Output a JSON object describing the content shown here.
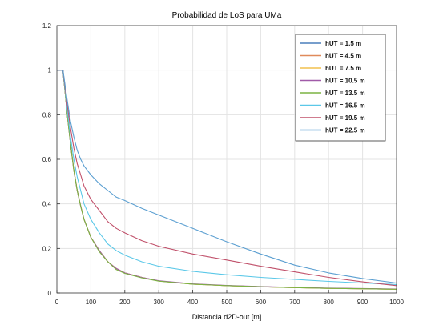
{
  "chart_data": {
    "type": "line",
    "title": "Probabilidad de LoS para UMa",
    "xlabel": "Distancia d2D-out [m]",
    "ylabel": "",
    "xlim": [
      0,
      1000
    ],
    "ylim": [
      0,
      1.2
    ],
    "xticks": [
      "0",
      "100",
      "200",
      "300",
      "400",
      "500",
      "600",
      "700",
      "800",
      "900",
      "1000"
    ],
    "yticks": [
      "0",
      "0.2",
      "0.4",
      "0.6",
      "0.8",
      "1",
      "1.2"
    ],
    "grid": true,
    "legend_position": "top-right",
    "x": [
      0,
      10,
      18,
      30,
      40,
      50,
      60,
      70,
      80,
      100,
      125,
      150,
      175,
      200,
      250,
      300,
      400,
      500,
      600,
      700,
      800,
      900,
      1000
    ],
    "series": [
      {
        "name": "hUT = 1.5 m",
        "color": "#4a7ebb",
        "values": [
          1,
          1,
          1,
          0.81,
          0.67,
          0.55,
          0.46,
          0.39,
          0.33,
          0.25,
          0.19,
          0.14,
          0.11,
          0.09,
          0.07,
          0.054,
          0.04,
          0.033,
          0.028,
          0.024,
          0.021,
          0.019,
          0.017
        ]
      },
      {
        "name": "hUT = 4.5 m",
        "color": "#e08a5a",
        "values": [
          1,
          1,
          1,
          0.81,
          0.67,
          0.55,
          0.46,
          0.39,
          0.33,
          0.25,
          0.19,
          0.14,
          0.11,
          0.09,
          0.07,
          0.054,
          0.04,
          0.033,
          0.028,
          0.024,
          0.021,
          0.019,
          0.017
        ]
      },
      {
        "name": "hUT = 7.5 m",
        "color": "#f2c14e",
        "values": [
          1,
          1,
          1,
          0.81,
          0.67,
          0.55,
          0.46,
          0.39,
          0.33,
          0.25,
          0.19,
          0.14,
          0.11,
          0.09,
          0.07,
          0.054,
          0.04,
          0.033,
          0.028,
          0.024,
          0.021,
          0.019,
          0.017
        ]
      },
      {
        "name": "hUT = 10.5 m",
        "color": "#a05aa8",
        "values": [
          1,
          1,
          1,
          0.81,
          0.67,
          0.55,
          0.46,
          0.39,
          0.33,
          0.25,
          0.19,
          0.14,
          0.11,
          0.09,
          0.07,
          0.055,
          0.041,
          0.034,
          0.029,
          0.025,
          0.022,
          0.02,
          0.018
        ]
      },
      {
        "name": "hUT = 13.5 m",
        "color": "#7cb342",
        "values": [
          1,
          1,
          1,
          0.81,
          0.67,
          0.55,
          0.46,
          0.39,
          0.33,
          0.25,
          0.185,
          0.14,
          0.105,
          0.088,
          0.068,
          0.053,
          0.04,
          0.033,
          0.028,
          0.024,
          0.021,
          0.019,
          0.017
        ]
      },
      {
        "name": "hUT = 16.5 m",
        "color": "#5bc8e8",
        "values": [
          1,
          1,
          1,
          0.83,
          0.7,
          0.6,
          0.52,
          0.46,
          0.4,
          0.33,
          0.27,
          0.22,
          0.19,
          0.17,
          0.14,
          0.12,
          0.097,
          0.082,
          0.07,
          0.061,
          0.052,
          0.045,
          0.038
        ]
      },
      {
        "name": "hUT = 19.5 m",
        "color": "#c0506a",
        "values": [
          1,
          1,
          1,
          0.85,
          0.74,
          0.65,
          0.58,
          0.53,
          0.48,
          0.42,
          0.37,
          0.32,
          0.29,
          0.27,
          0.235,
          0.21,
          0.175,
          0.148,
          0.12,
          0.095,
          0.07,
          0.05,
          0.033
        ]
      },
      {
        "name": "hUT = 22.5 m",
        "color": "#5b9fd1",
        "values": [
          1,
          1,
          1,
          0.87,
          0.77,
          0.7,
          0.64,
          0.6,
          0.57,
          0.53,
          0.49,
          0.46,
          0.43,
          0.415,
          0.38,
          0.35,
          0.29,
          0.23,
          0.175,
          0.125,
          0.09,
          0.065,
          0.045
        ]
      }
    ]
  }
}
